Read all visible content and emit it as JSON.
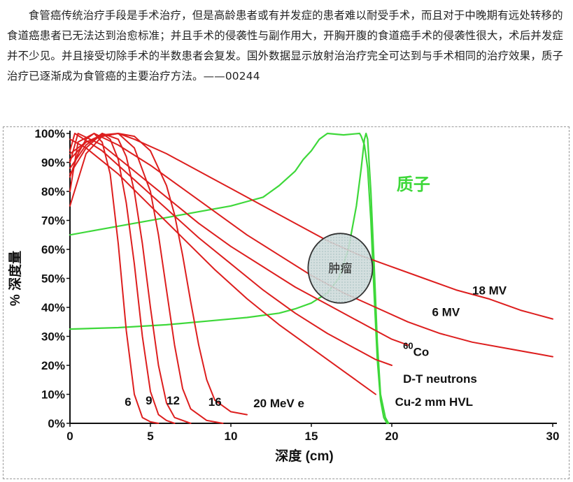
{
  "caption": "食管癌传统治疗手段是手术治疗，但是高龄患者或有并发症的患者难以耐受手术，而且对于中晚期有远处转移的食道癌患者已无法达到治愈标准；并且手术的侵袭性与副作用大，开胸开腹的食道癌手术的侵袭性很大，术后并发症并不少见。并且接受切除手术的半数患者会复发。国外数据显示放射治治疗完全可达到与手术相同的治疗效果，质子治疗已逐渐成为食管癌的主要治疗方法。——00244",
  "chart_data": {
    "type": "line",
    "xlabel": "深度 (cm)",
    "ylabel": "% 深度量",
    "xlim": [
      0,
      30
    ],
    "ylim": [
      0,
      100
    ],
    "x_ticks": [
      "0",
      "5",
      "10",
      "15",
      "20",
      "30"
    ],
    "x_tick_values": [
      0,
      5,
      10,
      15,
      20,
      30
    ],
    "y_ticks": [
      "0%",
      "10%",
      "20%",
      "30%",
      "40%",
      "50%",
      "60%",
      "70%",
      "80%",
      "90%",
      "100%"
    ],
    "grid": false,
    "colors": {
      "photon": "#dd1e1e",
      "proton": "#3ed83a",
      "tumor_fill": "#cfdcdc"
    },
    "series": [
      {
        "name": "质子",
        "kind": "proton",
        "points": [
          [
            0,
            65
          ],
          [
            2,
            67
          ],
          [
            4,
            69
          ],
          [
            6,
            71
          ],
          [
            8,
            73
          ],
          [
            10,
            75
          ],
          [
            11,
            76.5
          ],
          [
            12,
            78
          ],
          [
            13,
            82
          ],
          [
            14,
            87
          ],
          [
            14.5,
            91
          ],
          [
            15,
            94
          ],
          [
            15.5,
            98
          ],
          [
            16,
            100
          ],
          [
            17,
            99.5
          ],
          [
            18,
            100
          ],
          [
            18.1,
            99
          ],
          [
            18.3,
            96
          ],
          [
            18.5,
            88
          ],
          [
            18.7,
            70
          ],
          [
            18.9,
            45
          ],
          [
            19.1,
            22
          ],
          [
            19.3,
            8
          ],
          [
            19.5,
            2
          ],
          [
            19.7,
            0
          ]
        ]
      },
      {
        "name": "质子",
        "kind": "proton",
        "points": [
          [
            0,
            32.5
          ],
          [
            3,
            33
          ],
          [
            6,
            34
          ],
          [
            9,
            35.5
          ],
          [
            11,
            36.5
          ],
          [
            13,
            38
          ],
          [
            14,
            39.5
          ],
          [
            15,
            41.5
          ],
          [
            16,
            45
          ],
          [
            16.7,
            50
          ],
          [
            17.3,
            60
          ],
          [
            17.8,
            75
          ],
          [
            18.1,
            88
          ],
          [
            18.3,
            98
          ],
          [
            18.4,
            100
          ],
          [
            18.5,
            98
          ],
          [
            18.7,
            80
          ],
          [
            18.9,
            55
          ],
          [
            19.1,
            28
          ],
          [
            19.3,
            10
          ],
          [
            19.6,
            2
          ],
          [
            19.8,
            0
          ]
        ]
      },
      {
        "name": "18 MV",
        "kind": "photon",
        "points": [
          [
            0,
            75
          ],
          [
            1,
            93
          ],
          [
            2,
            99
          ],
          [
            3,
            100
          ],
          [
            4,
            98
          ],
          [
            6,
            93
          ],
          [
            8,
            87
          ],
          [
            10,
            81
          ],
          [
            12,
            75
          ],
          [
            14,
            69
          ],
          [
            16,
            63
          ],
          [
            18,
            58
          ],
          [
            20,
            54
          ],
          [
            22,
            50
          ],
          [
            24,
            46
          ],
          [
            26,
            43
          ],
          [
            28,
            39
          ],
          [
            30,
            36
          ]
        ]
      },
      {
        "name": "6 MV",
        "kind": "photon",
        "points": [
          [
            0,
            80
          ],
          [
            0.5,
            97
          ],
          [
            1.5,
            100
          ],
          [
            3,
            96
          ],
          [
            5,
            89
          ],
          [
            7,
            81
          ],
          [
            9,
            73
          ],
          [
            11,
            65
          ],
          [
            13,
            58
          ],
          [
            15,
            51
          ],
          [
            17,
            45
          ],
          [
            19,
            40
          ],
          [
            21,
            35
          ],
          [
            23,
            31
          ],
          [
            25,
            28
          ],
          [
            27,
            26
          ],
          [
            29,
            24
          ],
          [
            30,
            23
          ]
        ]
      },
      {
        "name": "60Co",
        "kind": "photon",
        "points": [
          [
            0,
            90
          ],
          [
            0.5,
            100
          ],
          [
            2,
            96
          ],
          [
            4,
            87
          ],
          [
            6,
            78
          ],
          [
            8,
            69
          ],
          [
            10,
            61
          ],
          [
            12,
            54
          ],
          [
            14,
            47
          ],
          [
            16,
            41
          ],
          [
            18,
            35
          ],
          [
            19,
            32
          ],
          [
            20,
            29
          ],
          [
            21,
            27
          ]
        ]
      },
      {
        "name": "D-T neutrons",
        "kind": "photon",
        "points": [
          [
            0,
            94
          ],
          [
            0.3,
            100
          ],
          [
            2,
            94
          ],
          [
            4,
            84
          ],
          [
            6,
            74
          ],
          [
            8,
            64
          ],
          [
            10,
            55
          ],
          [
            12,
            46
          ],
          [
            14,
            38
          ],
          [
            16,
            31
          ],
          [
            18,
            25
          ],
          [
            19,
            22
          ],
          [
            20,
            20
          ]
        ]
      },
      {
        "name": "Cu-2 mm HVL",
        "kind": "photon",
        "points": [
          [
            0,
            98
          ],
          [
            1,
            95
          ],
          [
            3,
            86
          ],
          [
            5,
            75
          ],
          [
            7,
            64
          ],
          [
            9,
            53
          ],
          [
            11,
            43
          ],
          [
            13,
            34
          ],
          [
            15,
            26
          ],
          [
            16,
            22
          ],
          [
            17,
            18
          ],
          [
            18,
            14
          ],
          [
            19,
            10
          ]
        ]
      },
      {
        "name": "6",
        "kind": "photon",
        "points": [
          [
            0,
            85
          ],
          [
            0.5,
            93
          ],
          [
            1,
            98
          ],
          [
            1.5,
            100
          ],
          [
            2,
            97
          ],
          [
            2.5,
            86
          ],
          [
            3,
            62
          ],
          [
            3.5,
            32
          ],
          [
            4,
            10
          ],
          [
            4.5,
            2
          ],
          [
            5,
            0.5
          ],
          [
            5.5,
            0
          ]
        ]
      },
      {
        "name": "9",
        "kind": "photon",
        "points": [
          [
            0,
            86
          ],
          [
            1,
            95
          ],
          [
            2,
            100
          ],
          [
            2.5,
            98
          ],
          [
            3,
            91
          ],
          [
            3.5,
            76
          ],
          [
            4,
            55
          ],
          [
            4.5,
            30
          ],
          [
            5,
            11
          ],
          [
            5.5,
            3
          ],
          [
            6,
            1
          ],
          [
            6.5,
            0
          ]
        ]
      },
      {
        "name": "12",
        "kind": "photon",
        "points": [
          [
            0,
            88
          ],
          [
            1,
            96
          ],
          [
            2,
            100
          ],
          [
            3,
            98
          ],
          [
            3.5,
            92
          ],
          [
            4,
            80
          ],
          [
            4.5,
            62
          ],
          [
            5,
            40
          ],
          [
            5.5,
            20
          ],
          [
            6,
            7
          ],
          [
            6.5,
            2
          ],
          [
            7.5,
            0
          ]
        ]
      },
      {
        "name": "16",
        "kind": "photon",
        "points": [
          [
            0,
            91
          ],
          [
            1,
            97
          ],
          [
            2,
            99.5
          ],
          [
            3,
            100
          ],
          [
            4,
            95
          ],
          [
            5,
            80
          ],
          [
            5.5,
            65
          ],
          [
            6,
            46
          ],
          [
            6.5,
            27
          ],
          [
            7,
            12
          ],
          [
            7.5,
            5
          ],
          [
            8.5,
            1
          ],
          [
            9.5,
            0
          ]
        ]
      },
      {
        "name": "20 MeV e",
        "kind": "photon",
        "points": [
          [
            0,
            93
          ],
          [
            1,
            97
          ],
          [
            2,
            99
          ],
          [
            3,
            100
          ],
          [
            4,
            99
          ],
          [
            5,
            94
          ],
          [
            6,
            82
          ],
          [
            6.5,
            72
          ],
          [
            7,
            58
          ],
          [
            7.5,
            42
          ],
          [
            8,
            27
          ],
          [
            8.5,
            15
          ],
          [
            9,
            8
          ],
          [
            10,
            4
          ],
          [
            11,
            3
          ]
        ]
      }
    ],
    "labels": [
      {
        "text": "质子",
        "x": 20.3,
        "y": 80.5,
        "color": "#3ed83a",
        "size": 24
      },
      {
        "text": "18 MV",
        "x": 25.0,
        "y": 44.5,
        "color": "#111",
        "size": 17
      },
      {
        "text": "6 MV",
        "x": 22.5,
        "y": 37.0,
        "color": "#111",
        "size": 17
      },
      {
        "text": "D-T neutrons",
        "x": 20.7,
        "y": 14.0,
        "color": "#111",
        "size": 17
      },
      {
        "text": "Cu-2 mm HVL",
        "x": 20.2,
        "y": 6.0,
        "color": "#111",
        "size": 17
      },
      {
        "text": "6",
        "x": 3.4,
        "y": 6.0,
        "color": "#111",
        "size": 17
      },
      {
        "text": "9",
        "x": 4.7,
        "y": 6.5,
        "color": "#111",
        "size": 17
      },
      {
        "text": "12",
        "x": 6.0,
        "y": 6.5,
        "color": "#111",
        "size": 17
      },
      {
        "text": "16",
        "x": 8.6,
        "y": 6.0,
        "color": "#111",
        "size": 17
      },
      {
        "text": "20 MeV e",
        "x": 11.4,
        "y": 5.5,
        "color": "#111",
        "size": 17
      }
    ],
    "co_label": {
      "sup": "60",
      "base": "Co",
      "x": 20.7,
      "y": 24.0
    },
    "tumor": {
      "label": "肿瘤",
      "cx": 16.8,
      "cy": 53.5,
      "rx": 2.0,
      "ry": 12.0
    }
  }
}
